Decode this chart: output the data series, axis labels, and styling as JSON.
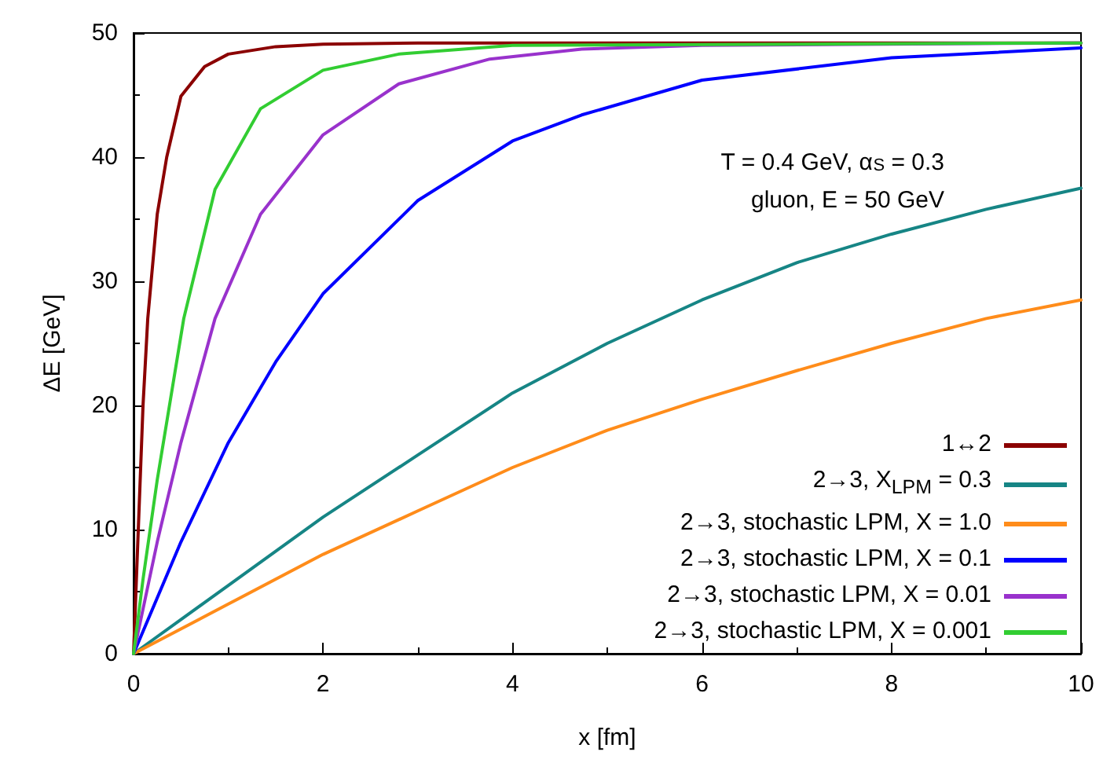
{
  "chart_data": {
    "type": "line",
    "xlabel": "x [fm]",
    "ylabel": "ΔE [GeV]",
    "xlim": [
      0,
      10
    ],
    "ylim": [
      0,
      50
    ],
    "xticks": [
      0,
      2,
      4,
      6,
      8,
      10
    ],
    "yticks": [
      0,
      10,
      20,
      30,
      40,
      50
    ],
    "grid": false,
    "legend": "bottom right",
    "marker": "none",
    "line_style": "solid",
    "annotations": [
      "T = 0.4 GeV, α$_{S}$ = 0.3",
      "gluon, E = 50 GeV"
    ],
    "series": [
      {
        "name": "1↔2",
        "color": "#8b0000",
        "x": [
          0,
          0.05,
          0.1,
          0.15,
          0.25,
          0.35,
          0.5,
          0.75,
          1,
          1.5,
          2,
          3,
          10
        ],
        "values": [
          0,
          10,
          20,
          27,
          35.4,
          40,
          44.9,
          47.3,
          48.3,
          48.9,
          49.1,
          49.2,
          49.2
        ]
      },
      {
        "name": "2→3, X$_{LPM}$ = 0.3",
        "color": "#168585",
        "x": [
          0,
          1,
          2,
          3,
          4,
          5,
          6,
          7,
          8,
          9,
          10
        ],
        "values": [
          0,
          5.5,
          11,
          16,
          21,
          25,
          28.5,
          31.5,
          33.8,
          35.8,
          37.5
        ]
      },
      {
        "name": "2→3, stochastic LPM, X = 1.0",
        "color": "#ff8c1a",
        "x": [
          0,
          1,
          2,
          3,
          4,
          5,
          6,
          7,
          8,
          9,
          10
        ],
        "values": [
          0,
          4,
          8,
          11.5,
          15,
          18,
          20.5,
          22.8,
          25,
          27,
          28.5
        ]
      },
      {
        "name": "2→3, stochastic LPM, X = 0.1",
        "color": "#0000ff",
        "x": [
          0,
          0.5,
          1,
          1.5,
          2,
          3,
          4,
          4.73,
          6,
          8,
          10
        ],
        "values": [
          0,
          9,
          17,
          23.5,
          29,
          36.5,
          41.3,
          43.4,
          46.2,
          48,
          48.8
        ]
      },
      {
        "name": "2→3, stochastic LPM, X = 0.01",
        "color": "#9932cc",
        "x": [
          0,
          0.25,
          0.5,
          0.86,
          1.34,
          2,
          2.8,
          3.76,
          4.73,
          6,
          10
        ],
        "values": [
          0,
          9,
          17,
          27,
          35.4,
          41.8,
          45.9,
          47.9,
          48.7,
          49,
          49.2
        ]
      },
      {
        "name": "2→3, stochastic LPM, X = 0.001",
        "color": "#32cd32",
        "x": [
          0,
          0.1,
          0.25,
          0.53,
          0.86,
          1.34,
          2,
          2.8,
          4,
          10
        ],
        "values": [
          0,
          6,
          14,
          27,
          37.4,
          43.9,
          47,
          48.3,
          49,
          49.2
        ]
      }
    ]
  }
}
